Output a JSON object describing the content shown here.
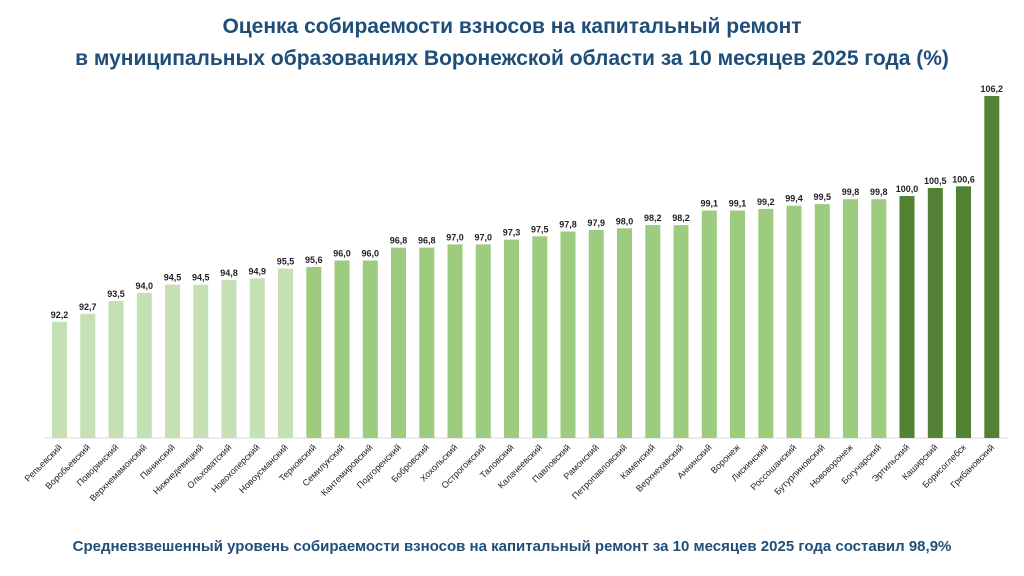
{
  "chart_data": {
    "type": "bar",
    "title_line1": "Оценка собираемости взносов на капитальный ремонт",
    "title_line2": "в муниципальных образованиях Воронежской области за 10 месяцев 2025 года (%)",
    "categories": [
      "Репьевский",
      "Воробьевский",
      "Поворинский",
      "Верхнемамонский",
      "Панинский",
      "Нижнедевицкий",
      "Ольховатский",
      "Новохоперский",
      "Новоусманский",
      "Терновский",
      "Семилукский",
      "Кантемировский",
      "Подгоренский",
      "Бобровский",
      "Хохольский",
      "Острогожский",
      "Таловский",
      "Калачеевский",
      "Павловский",
      "Рамонский",
      "Петропавловский",
      "Каменский",
      "Верхнехавский",
      "Аннинский",
      "Воронеж",
      "Лискинский",
      "Россошанский",
      "Бутурлиновский",
      "Нововоронеж",
      "Богучарский",
      "Эртильский",
      "Каширский",
      "Борисоглебск",
      "Грибановский"
    ],
    "values": [
      92.2,
      92.7,
      93.5,
      94.0,
      94.5,
      94.5,
      94.8,
      94.9,
      95.5,
      95.6,
      96.0,
      96.0,
      96.8,
      96.8,
      97.0,
      97.0,
      97.3,
      97.5,
      97.8,
      97.9,
      98.0,
      98.2,
      98.2,
      99.1,
      99.1,
      99.2,
      99.4,
      99.5,
      99.8,
      99.8,
      100.0,
      100.5,
      100.6,
      106.2
    ],
    "value_labels": [
      "92,2",
      "92,7",
      "93,5",
      "94,0",
      "94,5",
      "94,5",
      "94,8",
      "94,9",
      "95,5",
      "95,6",
      "96,0",
      "96,0",
      "96,8",
      "96,8",
      "97,0",
      "97,0",
      "97,3",
      "97,5",
      "97,8",
      "97,9",
      "98,0",
      "98,2",
      "98,2",
      "99,1",
      "99,1",
      "99,2",
      "99,4",
      "99,5",
      "99,8",
      "99,8",
      "100,0",
      "100,5",
      "100,6",
      "106,2"
    ],
    "ylim": [
      85,
      106.2
    ],
    "grid": false,
    "colors": {
      "light": "#c5e0b4",
      "medium": "#9dcb80",
      "dark": "#548235"
    },
    "color_groups": [
      "light",
      "light",
      "light",
      "light",
      "light",
      "light",
      "light",
      "light",
      "light",
      "medium",
      "medium",
      "medium",
      "medium",
      "medium",
      "medium",
      "medium",
      "medium",
      "medium",
      "medium",
      "medium",
      "medium",
      "medium",
      "medium",
      "medium",
      "medium",
      "medium",
      "medium",
      "medium",
      "medium",
      "medium",
      "dark",
      "dark",
      "dark",
      "dark"
    ]
  },
  "footer": "Средневзвешенный уровень собираемости взносов на капитальный ремонт за 10 месяцев 2025 года составил 98,9%"
}
